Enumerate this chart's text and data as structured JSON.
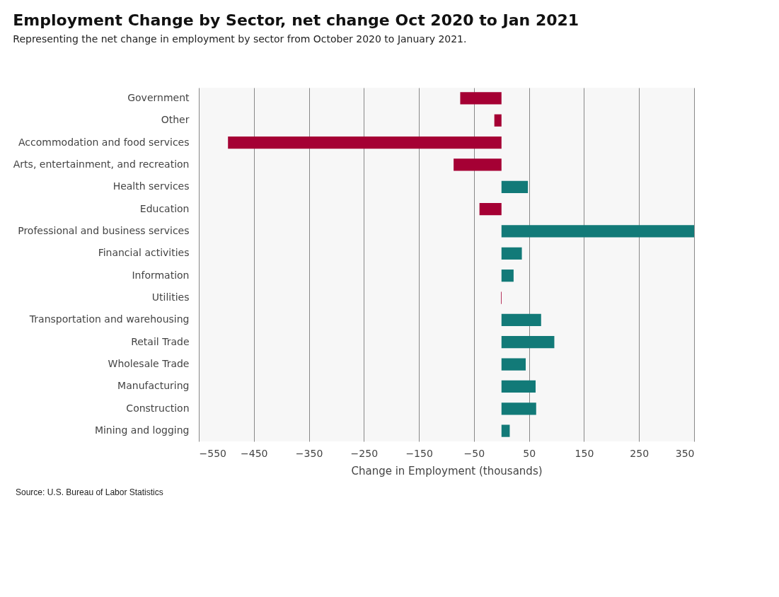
{
  "chart_data": {
    "type": "bar",
    "orientation": "horizontal",
    "title": "Employment Change by Sector, net change Oct 2020 to Jan 2021",
    "subtitle": "Representing the net change in employment by sector from October 2020 to January 2021.",
    "xlabel": "Change in Employment (thousands)",
    "categories": [
      "Government",
      "Other",
      "Accommodation and food services",
      "Arts, entertainment, and recreation",
      "Health services",
      "Education",
      "Professional and business services",
      "Financial activities",
      "Information",
      "Utilities",
      "Transportation and warehousing",
      "Retail Trade",
      "Wholesale Trade",
      "Manufacturing",
      "Construction",
      "Mining and logging"
    ],
    "values": [
      -75,
      -13,
      -497,
      -87,
      48,
      -40,
      350,
      37,
      22,
      -1,
      72,
      96,
      44,
      62,
      63,
      15
    ],
    "colors": [
      "#a50034",
      "#a50034",
      "#a50034",
      "#a50034",
      "#127a78",
      "#a50034",
      "#127a78",
      "#127a78",
      "#127a78",
      "#a50034",
      "#127a78",
      "#127a78",
      "#127a78",
      "#127a78",
      "#127a78",
      "#127a78"
    ],
    "xlim": [
      -550,
      350
    ],
    "xticks": [
      -550,
      -450,
      -350,
      -250,
      -150,
      -50,
      50,
      150,
      250,
      350
    ],
    "grid": "x",
    "annotations": [
      "Source: U.S. Bureau of Labor Statistics"
    ]
  }
}
